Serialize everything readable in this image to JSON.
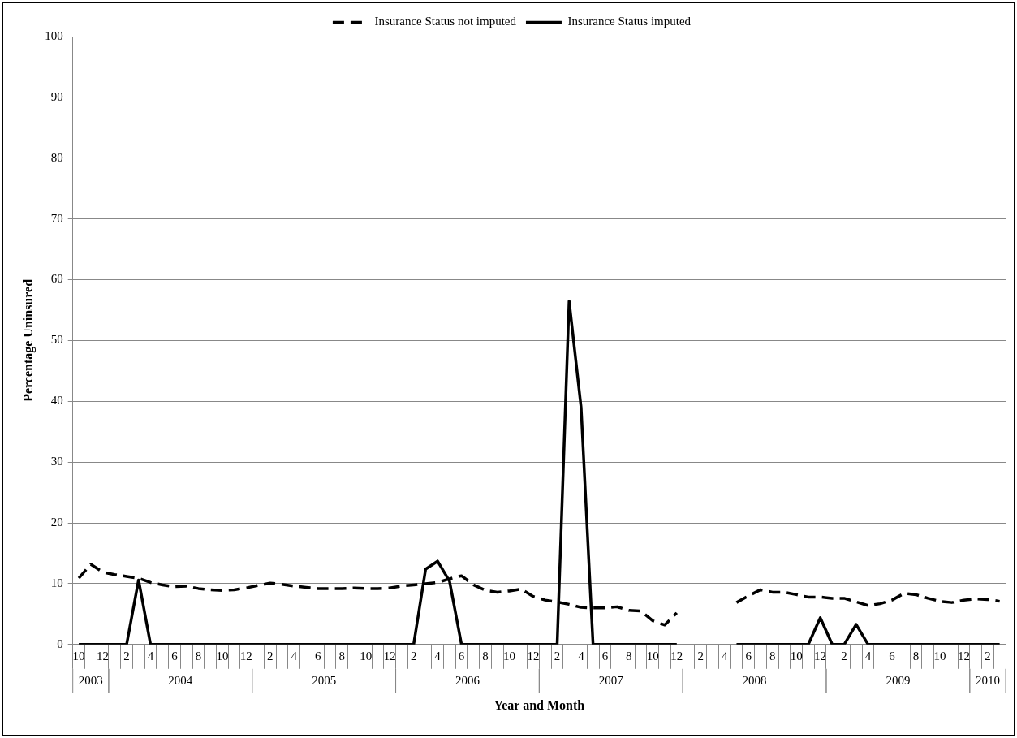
{
  "chart_data": {
    "type": "line",
    "xlabel": "Year and Month",
    "ylabel": "Percentage Uninsured",
    "x": [
      "2003-10",
      "2003-11",
      "2003-12",
      "2004-01",
      "2004-02",
      "2004-03",
      "2004-04",
      "2004-05",
      "2004-06",
      "2004-07",
      "2004-08",
      "2004-09",
      "2004-10",
      "2004-11",
      "2004-12",
      "2005-01",
      "2005-02",
      "2005-03",
      "2005-04",
      "2005-05",
      "2005-06",
      "2005-07",
      "2005-08",
      "2005-09",
      "2005-10",
      "2005-11",
      "2005-12",
      "2006-01",
      "2006-02",
      "2006-03",
      "2006-04",
      "2006-05",
      "2006-06",
      "2006-07",
      "2006-08",
      "2006-09",
      "2006-10",
      "2006-11",
      "2006-12",
      "2007-01",
      "2007-02",
      "2007-03",
      "2007-04",
      "2007-05",
      "2007-06",
      "2007-07",
      "2007-08",
      "2007-09",
      "2007-10",
      "2007-11",
      "2007-12",
      "2008-01",
      "2008-02",
      "2008-03",
      "2008-04",
      "2008-05",
      "2008-06",
      "2008-07",
      "2008-08",
      "2008-09",
      "2008-10",
      "2008-11",
      "2008-12",
      "2009-01",
      "2009-02",
      "2009-03",
      "2009-04",
      "2009-05",
      "2009-06",
      "2009-07",
      "2009-08",
      "2009-09",
      "2009-10",
      "2009-11",
      "2009-12",
      "2010-01",
      "2010-02",
      "2010-03"
    ],
    "series": [
      {
        "name": "Insurance Status not imputed",
        "color": "#000000",
        "line_style": "dashed",
        "values": [
          10.9,
          13.2,
          11.9,
          11.5,
          11.2,
          10.9,
          10.2,
          9.8,
          9.5,
          9.6,
          9.2,
          9.0,
          8.9,
          9.0,
          9.3,
          9.7,
          10.1,
          9.9,
          9.6,
          9.4,
          9.2,
          9.2,
          9.2,
          9.3,
          9.2,
          9.2,
          9.3,
          9.6,
          9.8,
          10.0,
          10.2,
          10.8,
          11.3,
          9.8,
          8.9,
          8.6,
          8.8,
          9.1,
          7.9,
          7.3,
          7.0,
          6.6,
          6.1,
          6.0,
          6.0,
          6.2,
          5.6,
          5.5,
          3.9,
          3.2,
          5.2,
          null,
          null,
          null,
          null,
          6.9,
          8.0,
          9.0,
          8.6,
          8.6,
          8.2,
          7.8,
          7.8,
          7.6,
          7.6,
          7.0,
          6.4,
          6.7,
          7.3,
          8.4,
          8.2,
          7.6,
          7.1,
          6.9,
          7.3,
          7.5,
          7.4,
          7.1
        ]
      },
      {
        "name": "Insurance Status imputed",
        "color": "#000000",
        "line_style": "solid",
        "values": [
          0,
          0,
          0,
          0,
          0,
          10.6,
          0,
          0,
          0,
          0,
          0,
          0,
          0,
          0,
          0,
          0,
          0,
          0,
          0,
          0,
          0,
          0,
          0,
          0,
          0,
          0,
          0,
          0,
          0,
          12.4,
          13.7,
          10.4,
          0,
          0,
          0,
          0,
          0,
          0,
          0,
          0,
          0,
          56.5,
          39,
          0,
          0,
          0,
          0,
          0,
          0,
          0,
          0,
          null,
          null,
          null,
          null,
          0,
          0,
          0,
          0,
          0,
          0,
          0,
          4.4,
          0,
          0,
          3.3,
          0,
          0,
          0,
          0,
          0,
          0,
          0,
          0,
          0,
          0,
          0,
          0
        ]
      }
    ],
    "xlim": [
      "2003-10",
      "2010-03"
    ],
    "xticks": [
      {
        "value": "2003-10",
        "label": "10"
      },
      {
        "value": "2003-12",
        "label": "12"
      },
      {
        "value": "2004-02",
        "label": "2"
      },
      {
        "value": "2004-04",
        "label": "4"
      },
      {
        "value": "2004-06",
        "label": "6"
      },
      {
        "value": "2004-08",
        "label": "8"
      },
      {
        "value": "2004-10",
        "label": "10"
      },
      {
        "value": "2004-12",
        "label": "12"
      },
      {
        "value": "2005-02",
        "label": "2"
      },
      {
        "value": "2005-04",
        "label": "4"
      },
      {
        "value": "2005-06",
        "label": "6"
      },
      {
        "value": "2005-08",
        "label": "8"
      },
      {
        "value": "2005-10",
        "label": "10"
      },
      {
        "value": "2005-12",
        "label": "12"
      },
      {
        "value": "2006-02",
        "label": "2"
      },
      {
        "value": "2006-04",
        "label": "4"
      },
      {
        "value": "2006-06",
        "label": "6"
      },
      {
        "value": "2006-08",
        "label": "8"
      },
      {
        "value": "2006-10",
        "label": "10"
      },
      {
        "value": "2006-12",
        "label": "12"
      },
      {
        "value": "2007-02",
        "label": "2"
      },
      {
        "value": "2007-04",
        "label": "4"
      },
      {
        "value": "2007-06",
        "label": "6"
      },
      {
        "value": "2007-08",
        "label": "8"
      },
      {
        "value": "2007-10",
        "label": "10"
      },
      {
        "value": "2007-12",
        "label": "12"
      },
      {
        "value": "2008-02",
        "label": "2"
      },
      {
        "value": "2008-04",
        "label": "4"
      },
      {
        "value": "2008-06",
        "label": "6"
      },
      {
        "value": "2008-08",
        "label": "8"
      },
      {
        "value": "2008-10",
        "label": "10"
      },
      {
        "value": "2008-12",
        "label": "12"
      },
      {
        "value": "2009-02",
        "label": "2"
      },
      {
        "value": "2009-04",
        "label": "4"
      },
      {
        "value": "2009-06",
        "label": "6"
      },
      {
        "value": "2009-08",
        "label": "8"
      },
      {
        "value": "2009-10",
        "label": "10"
      },
      {
        "value": "2009-12",
        "label": "12"
      },
      {
        "value": "2010-02",
        "label": "2"
      }
    ],
    "annotations": [
      "2003",
      "2004",
      "2005",
      "2006",
      "2007",
      "2008",
      "2009",
      "2010"
    ],
    "ylim": [
      0,
      100
    ],
    "yticks": [
      0,
      10,
      20,
      30,
      40,
      50,
      60,
      70,
      80,
      90,
      100
    ],
    "grid": "y",
    "legend": "top",
    "marker": "none"
  }
}
